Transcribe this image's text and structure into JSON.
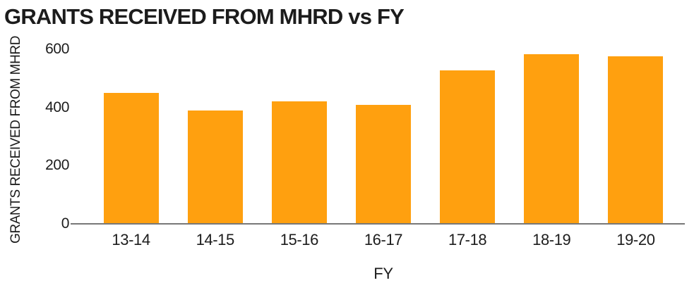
{
  "chart_data": {
    "type": "bar",
    "title": "GRANTS RECEIVED FROM MHRD vs FY",
    "xlabel": "FY",
    "ylabel": "GRANTS RECEIVED FROM MHRD",
    "categories": [
      "13-14",
      "14-15",
      "15-16",
      "16-17",
      "17-18",
      "18-19",
      "19-20"
    ],
    "values": [
      450,
      390,
      420,
      410,
      527,
      583,
      577
    ],
    "ylim": [
      0,
      600
    ],
    "yticks": [
      0,
      200,
      400,
      600
    ],
    "grid": false,
    "legend": false,
    "bar_color": "#FFA00F",
    "axis_line_color": "#787878",
    "text_color": "#1C1C1C",
    "background_color": "#FFFFFF"
  }
}
